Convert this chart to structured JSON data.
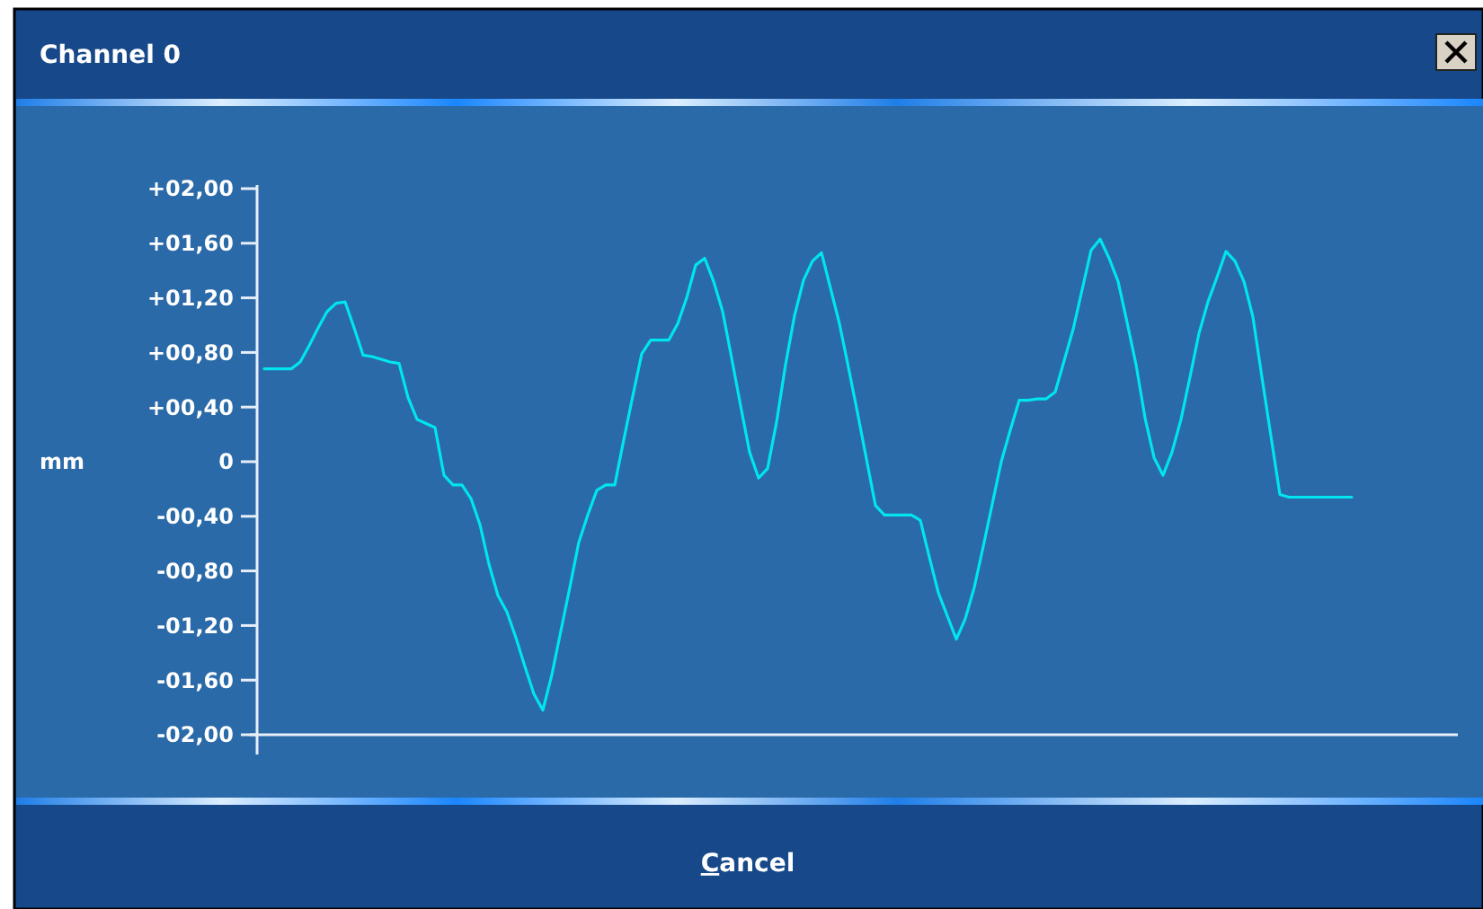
{
  "chart_data": {
    "type": "line",
    "title": "Channel 0",
    "ylabel": "mm",
    "categories": [
      null,
      null,
      null,
      null,
      null,
      null,
      null,
      null,
      null,
      null,
      null,
      null,
      null,
      null,
      null,
      null,
      null,
      null,
      null,
      null,
      null,
      null,
      null,
      null,
      null,
      null,
      null,
      null,
      null,
      null,
      null,
      null,
      null,
      null,
      null,
      null,
      null,
      null,
      null,
      null,
      null,
      null,
      null,
      null,
      null,
      null,
      null,
      null,
      null,
      null,
      null,
      null,
      null,
      null,
      null,
      null,
      null,
      null,
      null,
      null,
      null,
      null,
      null,
      null,
      null,
      null,
      null,
      null,
      null,
      null,
      null,
      null,
      null,
      null,
      null,
      null,
      null,
      null,
      null,
      null,
      null,
      null,
      null,
      null,
      null,
      null,
      null,
      null,
      null,
      null,
      null,
      null,
      null,
      null,
      null,
      null,
      null,
      null,
      null,
      null,
      null,
      null,
      null,
      null,
      null,
      null,
      null,
      null,
      null,
      null,
      null,
      null,
      null,
      null,
      null,
      null,
      null,
      null,
      null,
      null,
      null,
      null,
      null,
      null,
      null,
      null,
      null,
      null,
      null,
      null,
      null,
      null,
      null
    ],
    "series": [
      {
        "color": "#00e5f0",
        "values": [
          0.68,
          0.68,
          0.68,
          0.68,
          0.73,
          0.85,
          0.98,
          1.1,
          1.16,
          1.17,
          0.98,
          0.78,
          0.77,
          0.75,
          0.73,
          0.72,
          0.47,
          0.31,
          0.28,
          0.25,
          -0.1,
          -0.17,
          -0.17,
          -0.27,
          -0.46,
          -0.75,
          -0.98,
          -1.1,
          -1.29,
          -1.5,
          -1.7,
          -1.82,
          -1.56,
          -1.24,
          -0.92,
          -0.59,
          -0.39,
          -0.21,
          -0.17,
          -0.17,
          0.16,
          0.48,
          0.79,
          0.89,
          0.89,
          0.89,
          1.01,
          1.2,
          1.44,
          1.49,
          1.32,
          1.1,
          0.76,
          0.41,
          0.07,
          -0.12,
          -0.05,
          0.29,
          0.71,
          1.07,
          1.33,
          1.47,
          1.53,
          1.27,
          1.01,
          0.69,
          0.36,
          0.02,
          -0.32,
          -0.39,
          -0.39,
          -0.39,
          -0.39,
          -0.43,
          -0.7,
          -0.96,
          -1.13,
          -1.3,
          -1.15,
          -0.92,
          -0.62,
          -0.31,
          0,
          0.23,
          0.45,
          0.45,
          0.46,
          0.46,
          0.51,
          0.74,
          0.97,
          1.26,
          1.55,
          1.63,
          1.49,
          1.32,
          1.02,
          0.71,
          0.32,
          0.03,
          -0.1,
          0.07,
          0.31,
          0.62,
          0.94,
          1.17,
          1.35,
          1.54,
          1.47,
          1.32,
          1.06,
          0.62,
          0.19,
          -0.24,
          -0.26,
          -0.26,
          -0.26,
          -0.26,
          -0.26,
          -0.26,
          -0.26,
          -0.26,
          null,
          null,
          null,
          null,
          null,
          null,
          null,
          null,
          null,
          null,
          null
        ]
      }
    ],
    "ylim": [
      -2,
      2
    ],
    "yticks": [
      {
        "value": 2,
        "label": "+02,00"
      },
      {
        "value": 1.6,
        "label": "+01,60"
      },
      {
        "value": 1.2,
        "label": "+01,20"
      },
      {
        "value": 0.8,
        "label": "+00,80"
      },
      {
        "value": 0.4,
        "label": "+00,40"
      },
      0,
      {
        "value": -0.4,
        "label": "-00,40"
      },
      {
        "value": -0.8,
        "label": "-00,80"
      },
      {
        "value": -1.2,
        "label": "-01,20"
      },
      {
        "value": -1.6,
        "label": "-01,60"
      },
      {
        "value": -2,
        "label": "-02,00"
      }
    ],
    "tick_labels": "y",
    "grid": false,
    "marker": "none",
    "line_style": "solid",
    "annotations": [
      "Cancel"
    ]
  }
}
